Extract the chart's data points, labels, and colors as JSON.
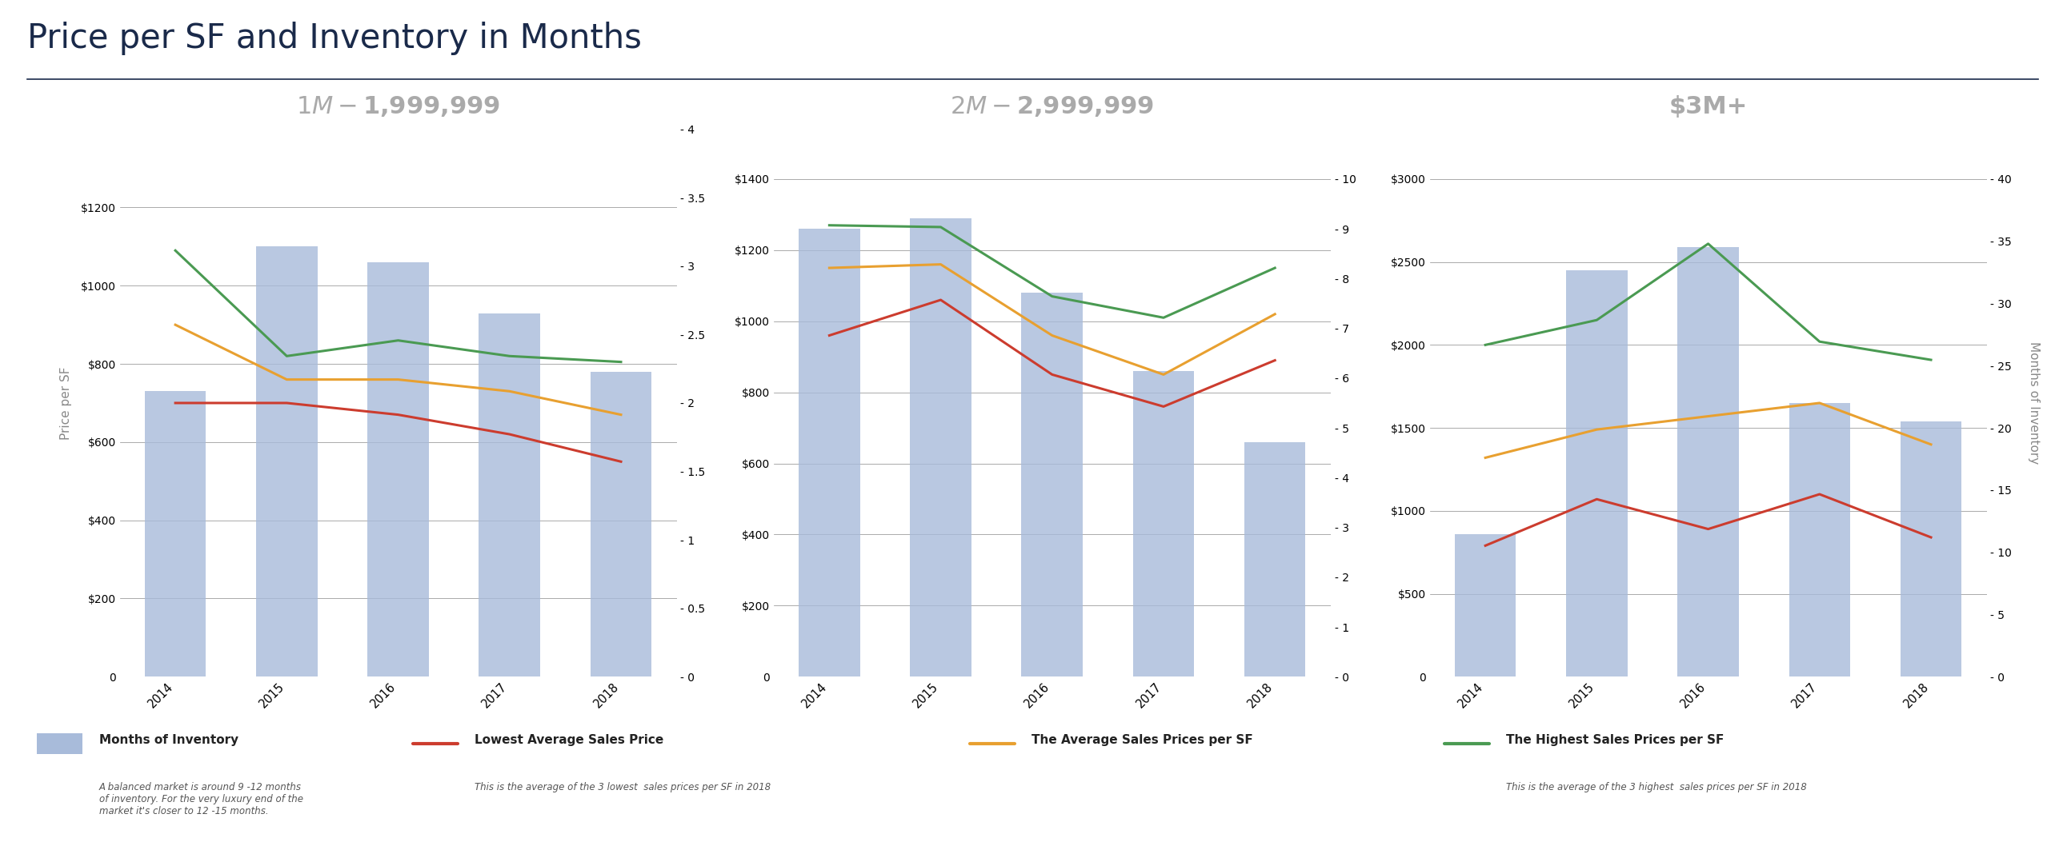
{
  "title": "Price per SF and Inventory in Months",
  "years": [
    2014,
    2015,
    2016,
    2017,
    2018
  ],
  "charts": [
    {
      "subtitle": "$1M - $1,999,999",
      "bars": [
        730,
        1100,
        1060,
        930,
        780
      ],
      "red": [
        700,
        700,
        670,
        620,
        550
      ],
      "orange": [
        900,
        760,
        760,
        730,
        670
      ],
      "green": [
        1090,
        820,
        860,
        820,
        805
      ],
      "ylim_left": [
        0,
        1400
      ],
      "ylim_right": [
        0,
        4.0
      ],
      "yticks_left": [
        0,
        200,
        400,
        600,
        800,
        1000,
        1200
      ],
      "yticks_right": [
        0,
        0.5,
        1.0,
        1.5,
        2.0,
        2.5,
        3.0,
        3.5,
        4.0
      ],
      "ylabels_left": [
        "0",
        "$200",
        "$400",
        "$600",
        "$800",
        "$1000",
        "$1200"
      ],
      "ylabels_right": [
        "- 0",
        "- 0.5",
        "- 1",
        "- 1.5",
        "- 2",
        "- 2.5",
        "- 3",
        "- 3.5",
        "- 4"
      ]
    },
    {
      "subtitle": "$2M - $2,999,999",
      "bars": [
        1260,
        1290,
        1080,
        860,
        660
      ],
      "red": [
        960,
        1060,
        850,
        760,
        890
      ],
      "orange": [
        1150,
        1160,
        960,
        850,
        1020
      ],
      "green": [
        1270,
        1265,
        1070,
        1010,
        1150
      ],
      "ylim_left": [
        0,
        1540
      ],
      "ylim_right": [
        0,
        11.0
      ],
      "yticks_left": [
        0,
        200,
        400,
        600,
        800,
        1000,
        1200,
        1400
      ],
      "yticks_right": [
        0,
        1,
        2,
        3,
        4,
        5,
        6,
        7,
        8,
        9,
        10
      ],
      "ylabels_left": [
        "0",
        "$200",
        "$400",
        "$600",
        "$800",
        "$1000",
        "$1200",
        "$1400"
      ],
      "ylabels_right": [
        "- 0",
        "- 1",
        "- 2",
        "- 3",
        "- 4",
        "- 5",
        "- 6",
        "- 7",
        "- 8",
        "- 9",
        "- 10"
      ]
    },
    {
      "subtitle": "$3M+",
      "bars": [
        860,
        2450,
        2590,
        1650,
        1540
      ],
      "red": [
        790,
        1070,
        890,
        1100,
        840
      ],
      "orange": [
        1320,
        1490,
        1570,
        1650,
        1400
      ],
      "green": [
        2000,
        2150,
        2610,
        2020,
        1910
      ],
      "ylim_left": [
        0,
        3300
      ],
      "ylim_right": [
        0,
        44.0
      ],
      "yticks_left": [
        0,
        500,
        1000,
        1500,
        2000,
        2500,
        3000
      ],
      "yticks_right": [
        0,
        5,
        10,
        15,
        20,
        25,
        30,
        35,
        40
      ],
      "ylabels_left": [
        "0",
        "$500",
        "$1000",
        "$1500",
        "$2000",
        "$2500",
        "$3000"
      ],
      "ylabels_right": [
        "- 0",
        "- 5",
        "- 10",
        "- 15",
        "- 20",
        "- 25",
        "- 30",
        "- 35",
        "- 40"
      ]
    }
  ],
  "bar_color": "#a8bbda",
  "red_color": "#cc3c2e",
  "orange_color": "#e8a030",
  "green_color": "#4a9a52",
  "title_color": "#1a2a4a",
  "subtitle_color": "#aaaaaa",
  "axis_label_color": "#888888",
  "grid_color": "#888888",
  "bg_color": "#ffffff",
  "legend_bg": "#e6e6e6",
  "legend_labels": [
    "Months of Inventory",
    "Lowest Average Sales Price",
    "The Average Sales Prices per SF",
    "The Highest Sales Prices per SF"
  ],
  "legend_subs": [
    "A balanced market is around 9 -12 months\nof inventory. For the very luxury end of the\nmarket it's closer to 12 -15 months.",
    "This is the average of the 3 lowest  sales prices per SF in 2018",
    "",
    "This is the average of the 3 highest  sales prices per SF in 2018"
  ],
  "ylabel_left": "Price per SF",
  "ylabel_right": "Months of Inventory"
}
